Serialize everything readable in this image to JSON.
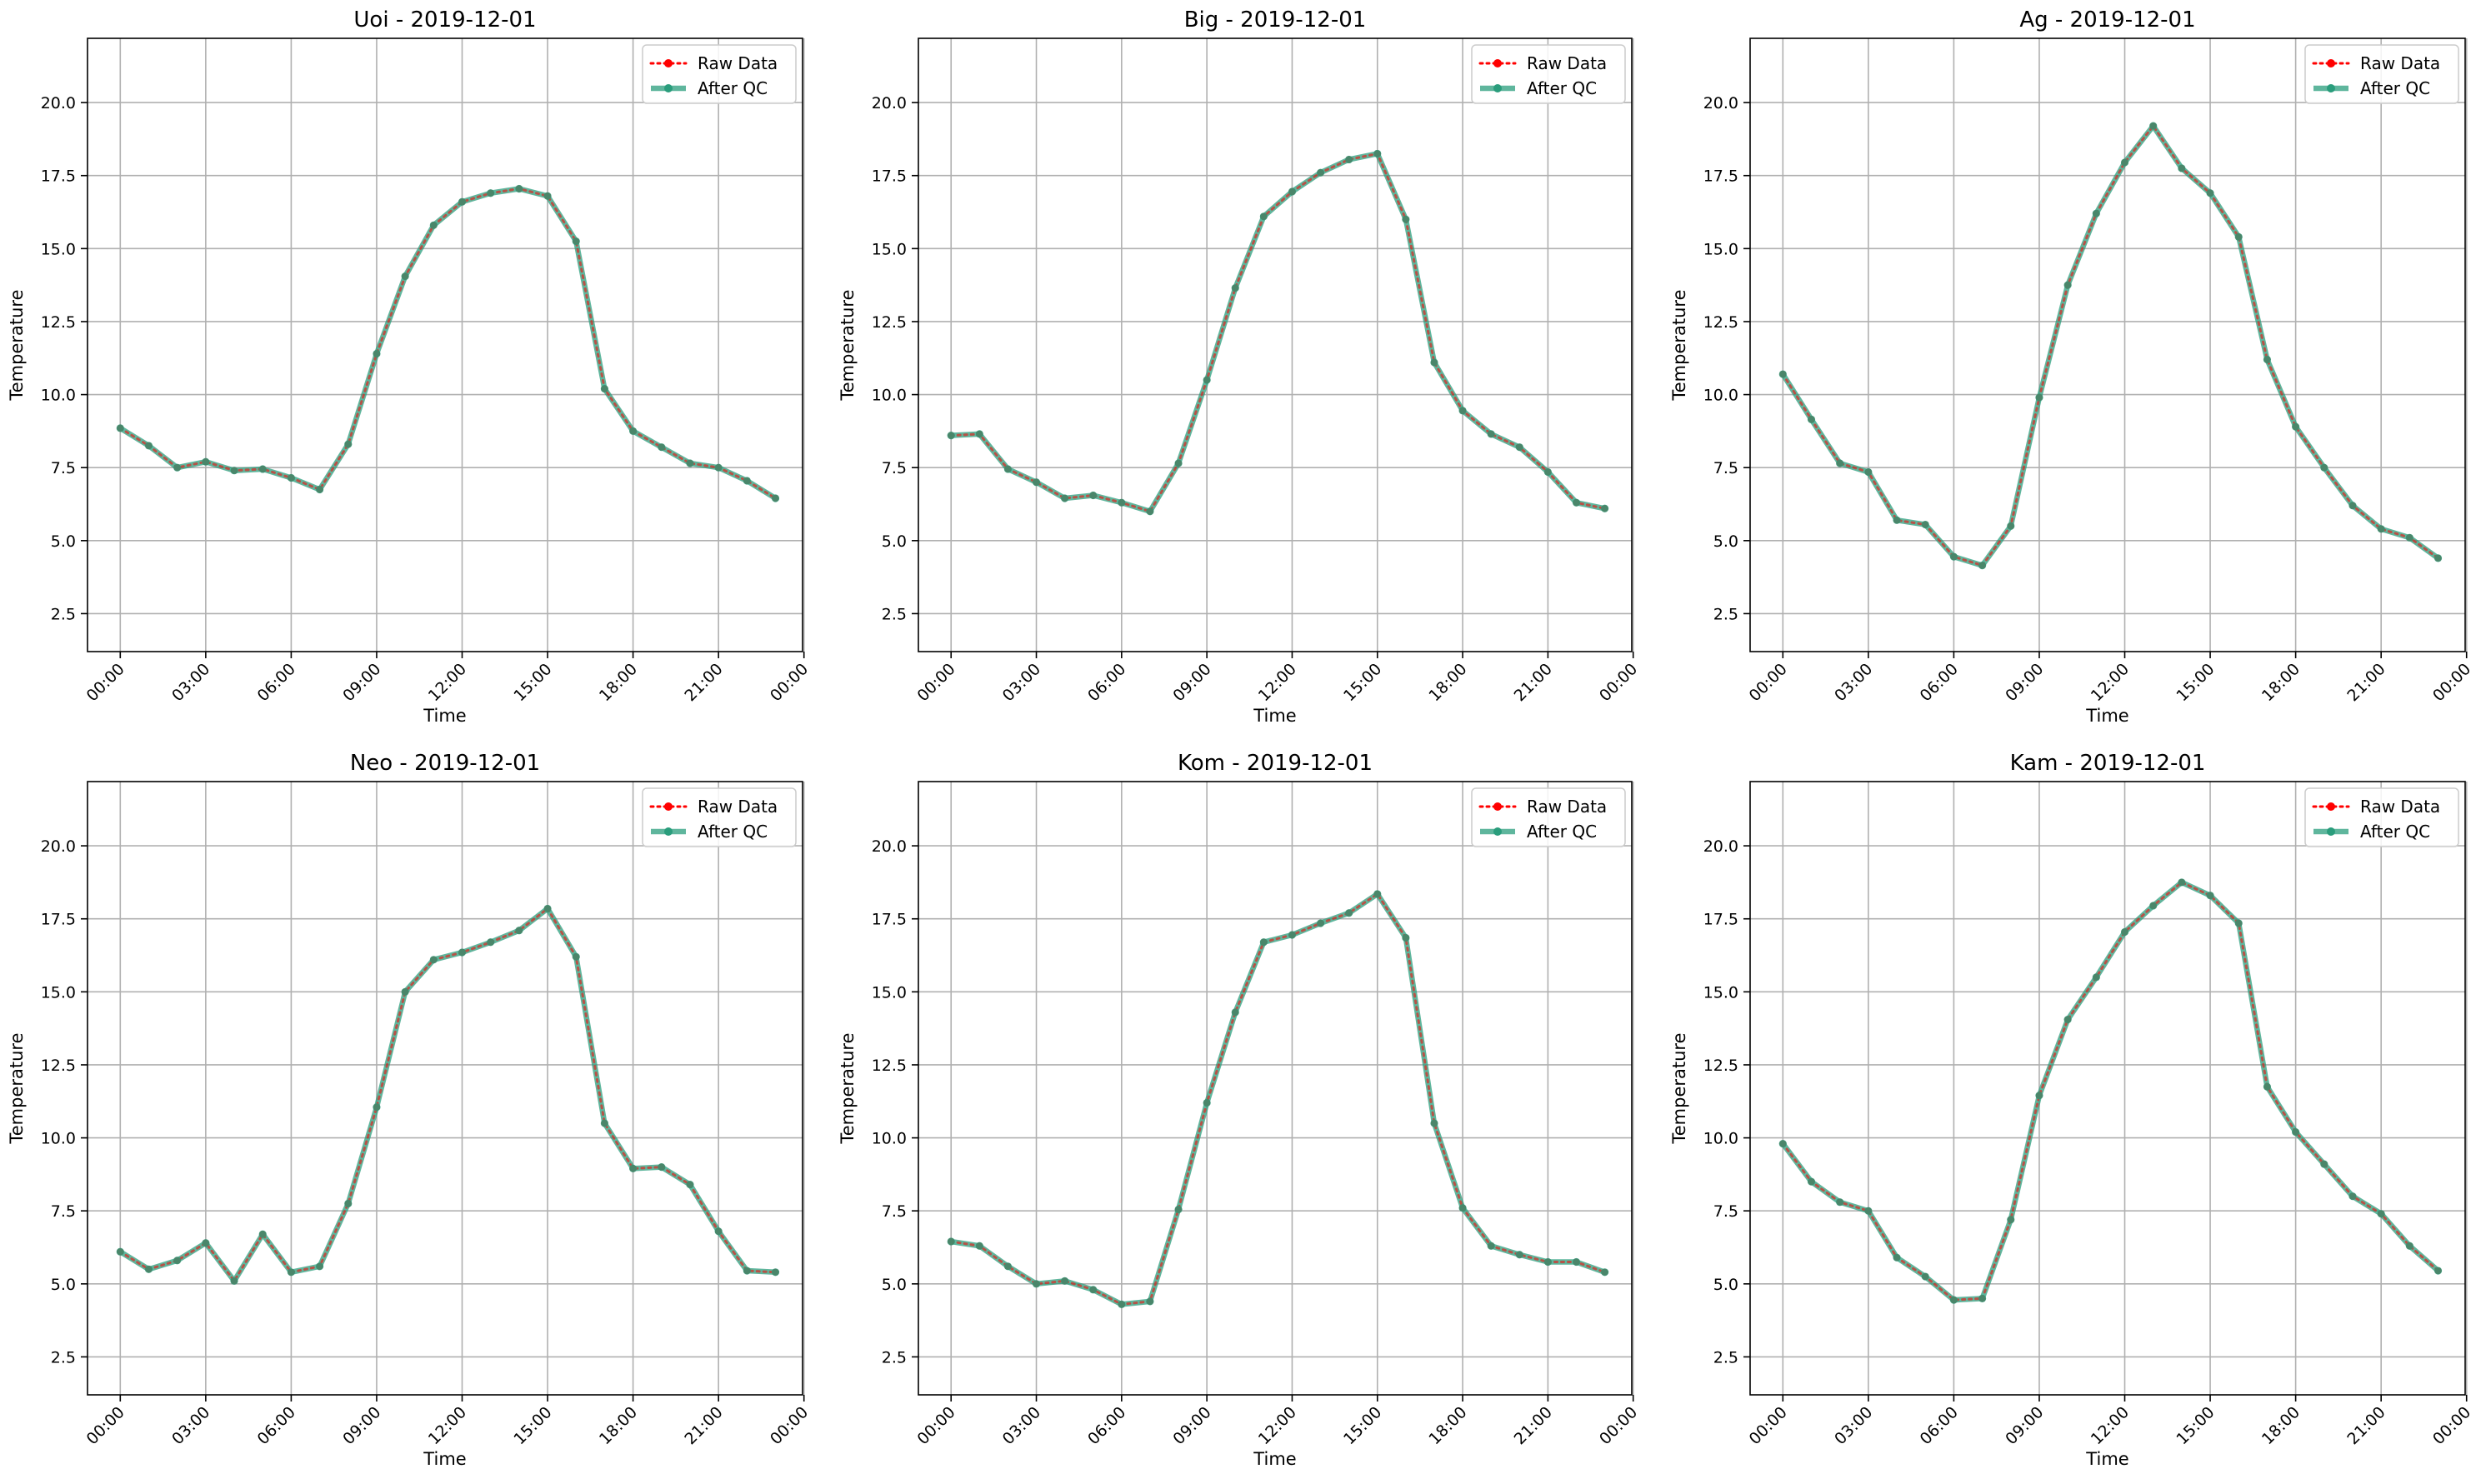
{
  "chart_data": [
    {
      "type": "line",
      "title": "Uoi - 2019-12-01",
      "xlabel": "Time",
      "ylabel": "Temperature",
      "xlim": [
        -1.15,
        23.95
      ],
      "ylim": [
        1.2,
        22.2
      ],
      "xticks": [
        "00:00",
        "03:00",
        "06:00",
        "09:00",
        "12:00",
        "15:00",
        "18:00",
        "21:00",
        "00:00"
      ],
      "yticks": [
        "2.5",
        "5.0",
        "7.5",
        "10.0",
        "12.5",
        "15.0",
        "17.5",
        "20.0"
      ],
      "grid": true,
      "legend": "top-right",
      "legend_entries": [
        "Raw Data",
        "After QC"
      ],
      "x": [
        0,
        1,
        2,
        3,
        4,
        5,
        6,
        7,
        8,
        9,
        10,
        11,
        12,
        13,
        14,
        15,
        16,
        17,
        18,
        19,
        20,
        21,
        22,
        23
      ],
      "series": [
        {
          "name": "Raw Data",
          "color": "#ff0000",
          "values": [
            8.85,
            8.25,
            7.5,
            7.7,
            7.4,
            7.45,
            7.15,
            6.75,
            8.3,
            11.4,
            14.05,
            15.8,
            16.6,
            16.9,
            17.05,
            16.8,
            15.25,
            10.2,
            8.75,
            8.2,
            7.65,
            7.5,
            7.05,
            6.45
          ]
        },
        {
          "name": "After QC",
          "color": "#2a9d7c",
          "values": [
            8.85,
            8.25,
            7.5,
            7.7,
            7.4,
            7.45,
            7.15,
            6.75,
            8.3,
            11.4,
            14.05,
            15.8,
            16.6,
            16.9,
            17.05,
            16.8,
            15.25,
            10.2,
            8.75,
            8.2,
            7.65,
            7.5,
            7.05,
            6.45
          ]
        }
      ]
    },
    {
      "type": "line",
      "title": "Big - 2019-12-01",
      "xlabel": "Time",
      "ylabel": "Temperature",
      "xlim": [
        -1.15,
        23.95
      ],
      "ylim": [
        1.2,
        22.2
      ],
      "xticks": [
        "00:00",
        "03:00",
        "06:00",
        "09:00",
        "12:00",
        "15:00",
        "18:00",
        "21:00",
        "00:00"
      ],
      "yticks": [
        "2.5",
        "5.0",
        "7.5",
        "10.0",
        "12.5",
        "15.0",
        "17.5",
        "20.0"
      ],
      "grid": true,
      "legend": "top-right",
      "legend_entries": [
        "Raw Data",
        "After QC"
      ],
      "x": [
        0,
        1,
        2,
        3,
        4,
        5,
        6,
        7,
        8,
        9,
        10,
        11,
        12,
        13,
        14,
        15,
        16,
        17,
        18,
        19,
        20,
        21,
        22,
        23
      ],
      "series": [
        {
          "name": "Raw Data",
          "color": "#ff0000",
          "values": [
            8.6,
            8.65,
            7.45,
            7.0,
            6.45,
            6.55,
            6.3,
            6.0,
            7.65,
            10.5,
            13.65,
            16.1,
            16.95,
            17.6,
            18.05,
            18.25,
            16.0,
            11.1,
            9.45,
            8.65,
            8.2,
            7.35,
            6.3,
            6.1
          ]
        },
        {
          "name": "After QC",
          "color": "#2a9d7c",
          "values": [
            8.6,
            8.65,
            7.45,
            7.0,
            6.45,
            6.55,
            6.3,
            6.0,
            7.65,
            10.5,
            13.65,
            16.1,
            16.95,
            17.6,
            18.05,
            18.25,
            16.0,
            11.1,
            9.45,
            8.65,
            8.2,
            7.35,
            6.3,
            6.1
          ]
        }
      ]
    },
    {
      "type": "line",
      "title": "Ag - 2019-12-01",
      "xlabel": "Time",
      "ylabel": "Temperature",
      "xlim": [
        -1.15,
        23.95
      ],
      "ylim": [
        1.2,
        22.2
      ],
      "xticks": [
        "00:00",
        "03:00",
        "06:00",
        "09:00",
        "12:00",
        "15:00",
        "18:00",
        "21:00",
        "00:00"
      ],
      "yticks": [
        "2.5",
        "5.0",
        "7.5",
        "10.0",
        "12.5",
        "15.0",
        "17.5",
        "20.0"
      ],
      "grid": true,
      "legend": "top-right",
      "legend_entries": [
        "Raw Data",
        "After QC"
      ],
      "x": [
        0,
        1,
        2,
        3,
        4,
        5,
        6,
        7,
        8,
        9,
        10,
        11,
        12,
        13,
        14,
        15,
        16,
        17,
        18,
        19,
        20,
        21,
        22,
        23
      ],
      "series": [
        {
          "name": "Raw Data",
          "color": "#ff0000",
          "values": [
            10.7,
            9.15,
            7.65,
            7.35,
            5.7,
            5.55,
            4.45,
            4.15,
            5.5,
            9.9,
            13.75,
            16.2,
            17.95,
            19.2,
            17.75,
            16.9,
            15.4,
            11.2,
            8.9,
            7.5,
            6.2,
            5.4,
            5.1,
            4.4
          ]
        },
        {
          "name": "After QC",
          "color": "#2a9d7c",
          "values": [
            10.7,
            9.15,
            7.65,
            7.35,
            5.7,
            5.55,
            4.45,
            4.15,
            5.5,
            9.9,
            13.75,
            16.2,
            17.95,
            19.2,
            17.75,
            16.9,
            15.4,
            11.2,
            8.9,
            7.5,
            6.2,
            5.4,
            5.1,
            4.4
          ]
        }
      ]
    },
    {
      "type": "line",
      "title": "Neo - 2019-12-01",
      "xlabel": "Time",
      "ylabel": "Temperature",
      "xlim": [
        -1.15,
        23.95
      ],
      "ylim": [
        1.2,
        22.2
      ],
      "xticks": [
        "00:00",
        "03:00",
        "06:00",
        "09:00",
        "12:00",
        "15:00",
        "18:00",
        "21:00",
        "00:00"
      ],
      "yticks": [
        "2.5",
        "5.0",
        "7.5",
        "10.0",
        "12.5",
        "15.0",
        "17.5",
        "20.0"
      ],
      "grid": true,
      "legend": "top-right",
      "legend_entries": [
        "Raw Data",
        "After QC"
      ],
      "x": [
        0,
        1,
        2,
        3,
        4,
        5,
        6,
        7,
        8,
        9,
        10,
        11,
        12,
        13,
        14,
        15,
        16,
        17,
        18,
        19,
        20,
        21,
        22,
        23
      ],
      "series": [
        {
          "name": "Raw Data",
          "color": "#ff0000",
          "values": [
            6.1,
            5.5,
            5.8,
            6.4,
            5.1,
            6.7,
            5.4,
            5.6,
            7.75,
            11.05,
            15.0,
            16.1,
            16.35,
            16.7,
            17.1,
            17.85,
            16.2,
            10.5,
            8.95,
            9.0,
            8.4,
            6.8,
            5.45,
            5.4
          ]
        },
        {
          "name": "After QC",
          "color": "#2a9d7c",
          "values": [
            6.1,
            5.5,
            5.8,
            6.4,
            5.1,
            6.7,
            5.4,
            5.6,
            7.75,
            11.05,
            15.0,
            16.1,
            16.35,
            16.7,
            17.1,
            17.85,
            16.2,
            10.5,
            8.95,
            9.0,
            8.4,
            6.8,
            5.45,
            5.4
          ]
        }
      ]
    },
    {
      "type": "line",
      "title": "Kom - 2019-12-01",
      "xlabel": "Time",
      "ylabel": "Temperature",
      "xlim": [
        -1.15,
        23.95
      ],
      "ylim": [
        1.2,
        22.2
      ],
      "xticks": [
        "00:00",
        "03:00",
        "06:00",
        "09:00",
        "12:00",
        "15:00",
        "18:00",
        "21:00",
        "00:00"
      ],
      "yticks": [
        "2.5",
        "5.0",
        "7.5",
        "10.0",
        "12.5",
        "15.0",
        "17.5",
        "20.0"
      ],
      "grid": true,
      "legend": "top-right",
      "legend_entries": [
        "Raw Data",
        "After QC"
      ],
      "x": [
        0,
        1,
        2,
        3,
        4,
        5,
        6,
        7,
        8,
        9,
        10,
        11,
        12,
        13,
        14,
        15,
        16,
        17,
        18,
        19,
        20,
        21,
        22,
        23
      ],
      "series": [
        {
          "name": "Raw Data",
          "color": "#ff0000",
          "values": [
            6.45,
            6.3,
            5.6,
            5.0,
            5.1,
            4.8,
            4.3,
            4.4,
            7.55,
            11.2,
            14.3,
            16.7,
            16.95,
            17.35,
            17.7,
            18.35,
            16.85,
            10.5,
            7.6,
            6.3,
            6.0,
            5.75,
            5.75,
            5.4
          ]
        },
        {
          "name": "After QC",
          "color": "#2a9d7c",
          "values": [
            6.45,
            6.3,
            5.6,
            5.0,
            5.1,
            4.8,
            4.3,
            4.4,
            7.55,
            11.2,
            14.3,
            16.7,
            16.95,
            17.35,
            17.7,
            18.35,
            16.85,
            10.5,
            7.6,
            6.3,
            6.0,
            5.75,
            5.75,
            5.4
          ]
        }
      ]
    },
    {
      "type": "line",
      "title": "Kam - 2019-12-01",
      "xlabel": "Time",
      "ylabel": "Temperature",
      "xlim": [
        -1.15,
        23.95
      ],
      "ylim": [
        1.2,
        22.2
      ],
      "xticks": [
        "00:00",
        "03:00",
        "06:00",
        "09:00",
        "12:00",
        "15:00",
        "18:00",
        "21:00",
        "00:00"
      ],
      "yticks": [
        "2.5",
        "5.0",
        "7.5",
        "10.0",
        "12.5",
        "15.0",
        "17.5",
        "20.0"
      ],
      "grid": true,
      "legend": "top-right",
      "legend_entries": [
        "Raw Data",
        "After QC"
      ],
      "x": [
        0,
        1,
        2,
        3,
        4,
        5,
        6,
        7,
        8,
        9,
        10,
        11,
        12,
        13,
        14,
        15,
        16,
        17,
        18,
        19,
        20,
        21,
        22,
        23
      ],
      "series": [
        {
          "name": "Raw Data",
          "color": "#ff0000",
          "values": [
            9.8,
            8.5,
            7.8,
            7.5,
            5.9,
            5.25,
            4.45,
            4.5,
            7.2,
            11.45,
            14.05,
            15.5,
            17.05,
            17.95,
            18.75,
            18.3,
            17.35,
            11.75,
            10.2,
            9.1,
            8.0,
            7.4,
            6.3,
            5.45
          ]
        },
        {
          "name": "After QC",
          "color": "#2a9d7c",
          "values": [
            9.8,
            8.5,
            7.8,
            7.5,
            5.9,
            5.25,
            4.45,
            4.5,
            7.2,
            11.45,
            14.05,
            15.5,
            17.05,
            17.95,
            18.75,
            18.3,
            17.35,
            11.75,
            10.2,
            9.1,
            8.0,
            7.4,
            6.3,
            5.45
          ]
        }
      ]
    }
  ]
}
